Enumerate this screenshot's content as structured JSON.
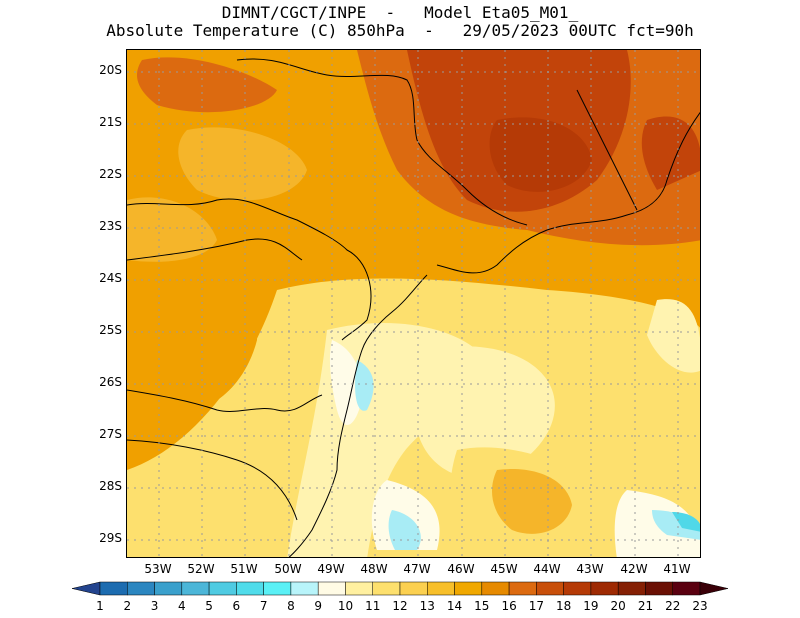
{
  "header": {
    "line1": "DIMNT/CGCT/INPE  -   Model Eta05_M01_",
    "line2": "Absolute Temperature (C) 850hPa  -   29/05/2023 00UTC fct=90h"
  },
  "map": {
    "lat_labels": [
      "20S",
      "21S",
      "22S",
      "23S",
      "24S",
      "25S",
      "26S",
      "27S",
      "28S",
      "29S"
    ],
    "lon_labels": [
      "53W",
      "52W",
      "51W",
      "50W",
      "49W",
      "48W",
      "47W",
      "46W",
      "45W",
      "44W",
      "43W",
      "42W",
      "41W"
    ],
    "grid": "dotted",
    "field_colors": {
      "hot": "#8a2a00",
      "warm": "#c2440a",
      "orange": "#dc6a10",
      "amber": "#f0a000",
      "gold": "#f5b52a",
      "yellow": "#fde06e",
      "pale": "#fff3b0",
      "cream": "#fffce8",
      "cyan": "#a8ecf5",
      "teal": "#50d8e8"
    }
  },
  "colorbar": {
    "labels": [
      "1",
      "2",
      "3",
      "4",
      "5",
      "6",
      "7",
      "8",
      "9",
      "10",
      "11",
      "12",
      "13",
      "14",
      "15",
      "16",
      "17",
      "18",
      "19",
      "20",
      "21",
      "22",
      "23"
    ],
    "colors": [
      "#23448e",
      "#1c6cb0",
      "#2b86c0",
      "#3aa0cc",
      "#4cb6d8",
      "#4fcbe2",
      "#50dcea",
      "#5af0f5",
      "#b8f4fa",
      "#fffbe5",
      "#fff0a0",
      "#fde06e",
      "#fbd050",
      "#f7bf2a",
      "#f0a800",
      "#e68a00",
      "#dc6a10",
      "#c84f0a",
      "#b53a06",
      "#9e2a03",
      "#852004",
      "#6a1004",
      "#5a0010",
      "#3a0008"
    ]
  }
}
